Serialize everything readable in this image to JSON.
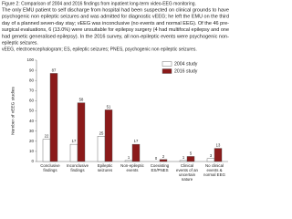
{
  "figure_caption": [
    "Figure 2: Comparison of 2004 and 2016 findings from inpatient long-term video-EEG monitoring.",
    "The only EMU patient to self discharge from hospital had been suspected on clinical grounds to have",
    "psychogenic non epileptic seizures and was admitted for diagnostic vEEG; he left the EMU on the third",
    "day of a planned seven-day stay; vEEG was inconclusive (no events and normal EEG). Of the 46 pre-",
    "surgical evaluations, 6 (13.0%) were unsuitable for epilepsy surgery (4 had multifocal epilepsy and one",
    "had genetic generalised epilepsy). In the 2016 survey, all non-epileptic events were psychogenic non-",
    "epileptic seizures.",
    "vEEG, electroencephalogram; ES, epileptic seizures; PNES, psychogenic non epileptic seizures."
  ],
  "chart_data": {
    "type": "bar",
    "y_label": "Number of vEEG studies",
    "categories": [
      "Conclusive findings",
      "Inconclusive findings",
      "Epileptic seizures",
      "Non-epileptic events",
      "Coexisting ES/PNES",
      "Clinical events of an uncertain nature",
      "No clinical events & normal EEG"
    ],
    "series": [
      {
        "name": "2004 study",
        "color": "#ffffff",
        "values": [
          22,
          17,
          25,
          1,
          0,
          1,
          3
        ]
      },
      {
        "name": "2016 study",
        "color": "#8b1a1a",
        "values": [
          87,
          58,
          51,
          17,
          2,
          5,
          13
        ]
      }
    ],
    "ylim": [
      0,
      100
    ],
    "yticks": [
      0,
      10,
      20,
      30,
      40,
      50,
      60,
      70,
      80,
      90,
      100
    ],
    "legend": "upper right"
  }
}
